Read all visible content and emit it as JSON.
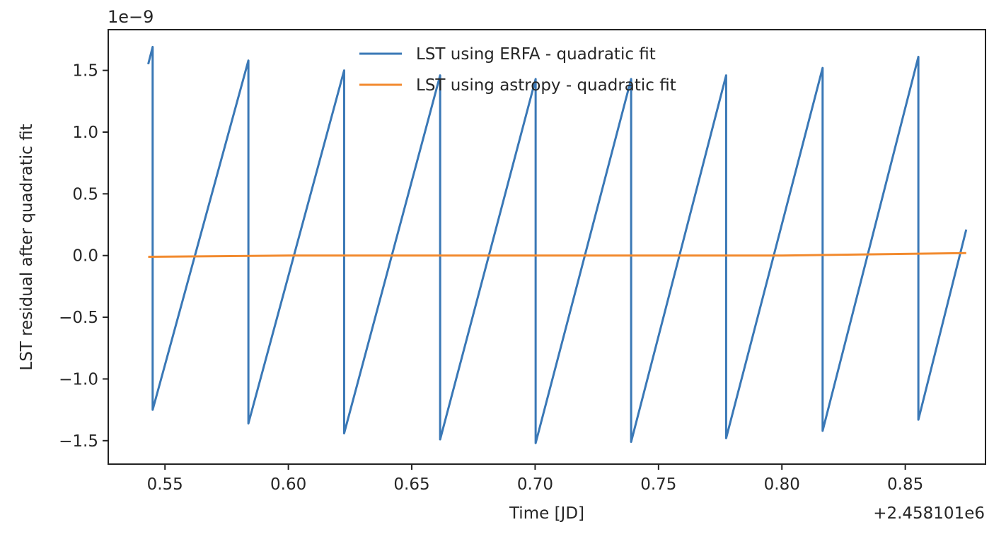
{
  "chart_data": {
    "type": "line",
    "title": "",
    "xlabel": "Time [JD]",
    "ylabel": "LST residual after quadratic fit",
    "x_offset_label": "+2.458101e6",
    "y_scale_label": "1e−9",
    "xlim": [
      0.527,
      0.8825
    ],
    "ylim": [
      -1.69,
      1.83
    ],
    "grid": false,
    "legend_position": "top-center",
    "x_ticks": [
      0.55,
      0.6,
      0.65,
      0.7,
      0.75,
      0.8,
      0.85
    ],
    "x_tick_labels": [
      "0.55",
      "0.60",
      "0.65",
      "0.70",
      "0.75",
      "0.80",
      "0.85"
    ],
    "y_ticks": [
      -1.5,
      -1.0,
      -0.5,
      0.0,
      0.5,
      1.0,
      1.5
    ],
    "y_tick_labels": [
      "−1.5",
      "−1.0",
      "−0.5",
      "0.0",
      "0.5",
      "1.0",
      "1.5"
    ],
    "series": [
      {
        "name": "LST using ERFA - quadratic fit",
        "color": "#3a78b6",
        "x": [
          0.5432,
          0.545,
          0.545,
          0.5838,
          0.5838,
          0.6226,
          0.6226,
          0.6615,
          0.6615,
          0.7002,
          0.7002,
          0.7389,
          0.7389,
          0.7774,
          0.7774,
          0.8165,
          0.8165,
          0.8553,
          0.8553,
          0.8747
        ],
        "y": [
          1.55,
          1.69,
          -1.25,
          1.58,
          -1.36,
          1.5,
          -1.44,
          1.46,
          -1.49,
          1.43,
          -1.52,
          1.43,
          -1.51,
          1.46,
          -1.48,
          1.52,
          -1.42,
          1.61,
          -1.33,
          0.21
        ]
      },
      {
        "name": "LST using astropy - quadratic fit",
        "color": "#f28a2e",
        "x": [
          0.5432,
          0.6,
          0.7,
          0.8,
          0.8747
        ],
        "y": [
          -0.01,
          0.0,
          0.0,
          0.0,
          0.02
        ]
      }
    ]
  }
}
